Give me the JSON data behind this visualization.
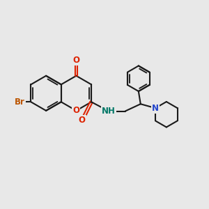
{
  "bg_color": "#e8e8e8",
  "bond_color": "#1a1a1a",
  "bond_width": 1.5,
  "atom_colors": {
    "O": "#dd2200",
    "N_pip": "#2244cc",
    "N_amide": "#007766",
    "Br": "#bb5500"
  }
}
